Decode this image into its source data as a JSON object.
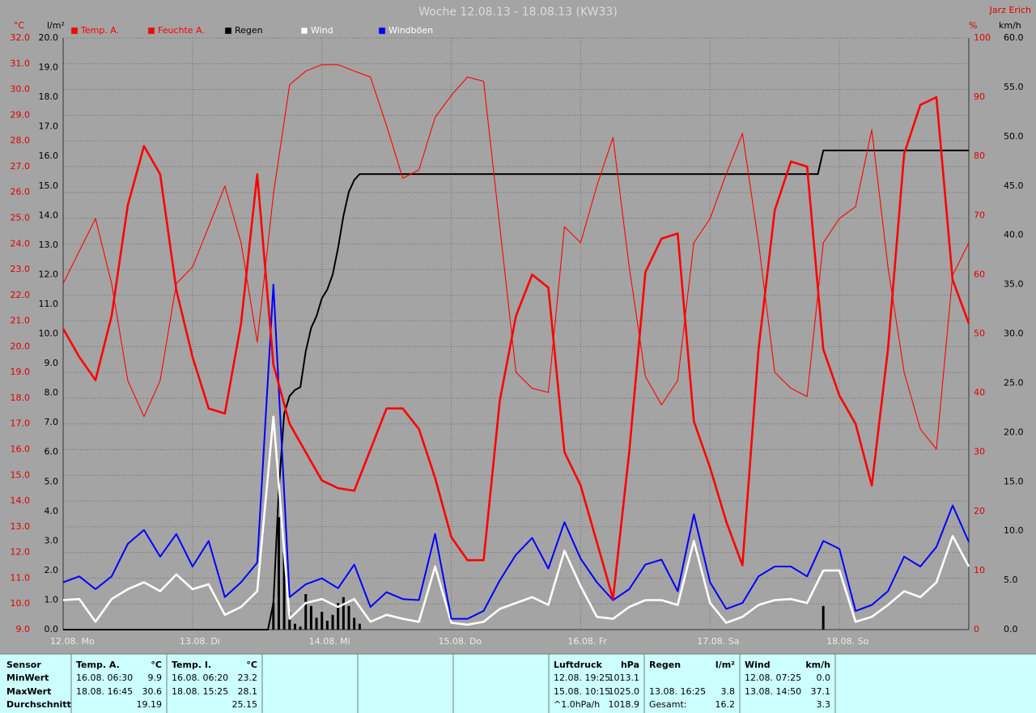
{
  "chart_data": {
    "type": "line",
    "title": "Woche 12.08.13 - 18.08.13 (KW33)",
    "author": "Jarz Erich",
    "y_label": "°C",
    "y3_label": "l/m²",
    "y2_label": "%",
    "y4_label": "km/h",
    "grid": true,
    "xlim": [
      0,
      168
    ],
    "xticks": [
      {
        "value": 0,
        "label": "12.08. Mo"
      },
      {
        "value": 24,
        "label": "13.08. Di"
      },
      {
        "value": 48,
        "label": "14.08. Mi"
      },
      {
        "value": 72,
        "label": "15.08. Do"
      },
      {
        "value": 96,
        "label": "16.08. Fr"
      },
      {
        "value": 120,
        "label": "17.08. Sa"
      },
      {
        "value": 144,
        "label": "18.08. So"
      }
    ],
    "ylim": [
      9,
      32
    ],
    "yticks": [
      {
        "value": 9,
        "label": "9.0"
      },
      {
        "value": 10,
        "label": "10.0"
      },
      {
        "value": 11,
        "label": "11.0"
      },
      {
        "value": 12,
        "label": "12.0"
      },
      {
        "value": 13,
        "label": "13.0"
      },
      {
        "value": 14,
        "label": "14.0"
      },
      {
        "value": 15,
        "label": "15.0"
      },
      {
        "value": 16,
        "label": "16.0"
      },
      {
        "value": 17,
        "label": "17.0"
      },
      {
        "value": 18,
        "label": "18.0"
      },
      {
        "value": 19,
        "label": "19.0"
      },
      {
        "value": 20,
        "label": "20.0"
      },
      {
        "value": 21,
        "label": "21.0"
      },
      {
        "value": 22,
        "label": "22.0"
      },
      {
        "value": 23,
        "label": "23.0"
      },
      {
        "value": 24,
        "label": "24.0"
      },
      {
        "value": 25,
        "label": "25.0"
      },
      {
        "value": 26,
        "label": "26.0"
      },
      {
        "value": 27,
        "label": "27.0"
      },
      {
        "value": 28,
        "label": "28.0"
      },
      {
        "value": 29,
        "label": "29.0"
      },
      {
        "value": 30,
        "label": "30.0"
      },
      {
        "value": 31,
        "label": "31.0"
      },
      {
        "value": 32,
        "label": "32.0"
      }
    ],
    "y2lim": [
      0,
      100
    ],
    "y2ticks": [
      0,
      10,
      20,
      30,
      40,
      50,
      60,
      70,
      80,
      90,
      100
    ],
    "y3lim": [
      0,
      20
    ],
    "y3ticks": [
      {
        "value": 0,
        "label": "0.0"
      },
      {
        "value": 1,
        "label": "1.0"
      },
      {
        "value": 2,
        "label": "2.0"
      },
      {
        "value": 3,
        "label": "3.0"
      },
      {
        "value": 4,
        "label": "4.0"
      },
      {
        "value": 5,
        "label": "5.0"
      },
      {
        "value": 6,
        "label": "6.0"
      },
      {
        "value": 7,
        "label": "7.0"
      },
      {
        "value": 8,
        "label": "8.0"
      },
      {
        "value": 9,
        "label": "9.0"
      },
      {
        "value": 10,
        "label": "10.0"
      },
      {
        "value": 11,
        "label": "11.0"
      },
      {
        "value": 12,
        "label": "12.0"
      },
      {
        "value": 13,
        "label": "13.0"
      },
      {
        "value": 14,
        "label": "14.0"
      },
      {
        "value": 15,
        "label": "15.0"
      },
      {
        "value": 16,
        "label": "16.0"
      },
      {
        "value": 17,
        "label": "17.0"
      },
      {
        "value": 18,
        "label": "18.0"
      },
      {
        "value": 19,
        "label": "19.0"
      },
      {
        "value": 20,
        "label": "20.0"
      }
    ],
    "y4lim": [
      0,
      60
    ],
    "y4ticks": [
      {
        "value": 0,
        "label": "0.0"
      },
      {
        "value": 5,
        "label": "5.0"
      },
      {
        "value": 10,
        "label": "10.0"
      },
      {
        "value": 15,
        "label": "15.0"
      },
      {
        "value": 20,
        "label": "20.0"
      },
      {
        "value": 25,
        "label": "25.0"
      },
      {
        "value": 30,
        "label": "30.0"
      },
      {
        "value": 35,
        "label": "35.0"
      },
      {
        "value": 40,
        "label": "40.0"
      },
      {
        "value": 45,
        "label": "45.0"
      },
      {
        "value": 50,
        "label": "50.0"
      },
      {
        "value": 55,
        "label": "55.0"
      },
      {
        "value": 60,
        "label": "60.0"
      }
    ],
    "x": [
      0,
      3,
      6,
      9,
      12,
      15,
      18,
      21,
      24,
      27,
      30,
      33,
      36,
      39,
      42,
      45,
      48,
      51,
      54,
      57,
      60,
      63,
      66,
      69,
      72,
      75,
      78,
      81,
      84,
      87,
      90,
      93,
      96,
      99,
      102,
      105,
      108,
      111,
      114,
      117,
      120,
      123,
      126,
      129,
      132,
      135,
      138,
      141,
      144,
      147,
      150,
      153,
      156,
      159,
      162,
      165,
      168
    ],
    "series": [
      {
        "name": "Temp. A.",
        "color": "#ff0000",
        "axis": "y",
        "type": "line",
        "values": [
          20.7,
          19.6,
          18.7,
          21.2,
          25.5,
          27.8,
          26.7,
          22.2,
          19.6,
          17.6,
          17.4,
          20.9,
          26.7,
          19.3,
          17.0,
          15.9,
          14.8,
          14.5,
          14.4,
          16.0,
          17.6,
          17.6,
          16.8,
          14.9,
          12.6,
          11.7,
          11.7,
          17.9,
          21.2,
          22.8,
          22.3,
          15.9,
          14.6,
          12.4,
          10.2,
          15.9,
          22.9,
          24.2,
          24.4,
          17.1,
          15.3,
          13.2,
          11.5,
          19.9,
          25.3,
          27.2,
          27.0,
          19.9,
          18.1,
          17.0,
          14.6,
          19.9,
          27.5,
          29.4,
          29.7,
          22.6,
          20.9
        ]
      },
      {
        "name": "Feuchte A.",
        "color": "#ff0000",
        "axis": "y2",
        "type": "line",
        "values": [
          58.5,
          64.0,
          69.5,
          58.5,
          42.1,
          36.0,
          42.1,
          58.5,
          61.3,
          68.1,
          75.0,
          65.4,
          48.6,
          73.6,
          92.1,
          94.4,
          95.5,
          95.5,
          94.4,
          93.4,
          85.2,
          76.3,
          77.7,
          86.6,
          90.3,
          93.4,
          92.7,
          68.1,
          43.5,
          40.8,
          40.1,
          68.1,
          65.4,
          75.0,
          83.2,
          61.3,
          42.8,
          38.0,
          42.1,
          65.4,
          69.5,
          77.0,
          83.9,
          65.4,
          43.5,
          40.8,
          39.4,
          65.4,
          69.5,
          71.5,
          84.5,
          61.3,
          43.5,
          33.9,
          30.5,
          59.9,
          65.4
        ]
      },
      {
        "name": "Regen",
        "color": "#000000",
        "axis": "y3",
        "type": "rain",
        "x": [
          39,
          40,
          41,
          42,
          43,
          44,
          45,
          46,
          47,
          48,
          49,
          50,
          51,
          52,
          53,
          54,
          55,
          141
        ],
        "values": [
          0.9,
          3.8,
          2.6,
          0.6,
          0.2,
          0.1,
          1.2,
          0.8,
          0.4,
          0.6,
          0.3,
          0.5,
          0.9,
          1.1,
          0.8,
          0.4,
          0.2,
          0.8
        ]
      },
      {
        "name": "Wind",
        "color": "#ffffff",
        "axis": "y4",
        "type": "line",
        "values": [
          3.0,
          3.1,
          0.8,
          3.1,
          4.1,
          4.8,
          3.9,
          5.6,
          4.1,
          4.6,
          1.5,
          2.3,
          3.9,
          21.6,
          1.1,
          2.7,
          3.1,
          2.3,
          3.1,
          0.8,
          1.5,
          1.1,
          0.8,
          6.4,
          0.7,
          0.5,
          0.8,
          2.1,
          2.7,
          3.3,
          2.5,
          8.0,
          4.4,
          1.3,
          1.1,
          2.3,
          3.0,
          3.0,
          2.5,
          9.0,
          2.7,
          0.7,
          1.3,
          2.5,
          3.0,
          3.1,
          2.7,
          6.0,
          6.0,
          0.8,
          1.3,
          2.5,
          3.9,
          3.3,
          4.8,
          9.5,
          6.4
        ]
      },
      {
        "name": "Windböen",
        "color": "#0000ff",
        "axis": "y4",
        "type": "line",
        "values": [
          4.8,
          5.4,
          4.1,
          5.4,
          8.7,
          10.1,
          7.4,
          9.7,
          6.4,
          9.0,
          3.3,
          4.8,
          6.8,
          35.0,
          3.3,
          4.6,
          5.2,
          4.2,
          6.6,
          2.3,
          3.8,
          3.1,
          3.0,
          9.7,
          1.1,
          1.1,
          1.9,
          5.0,
          7.6,
          9.3,
          6.2,
          10.9,
          7.2,
          4.8,
          3.0,
          4.1,
          6.6,
          7.1,
          3.9,
          11.7,
          4.8,
          2.1,
          2.7,
          5.4,
          6.4,
          6.4,
          5.4,
          9.0,
          8.2,
          1.9,
          2.5,
          3.9,
          7.4,
          6.4,
          8.4,
          12.6,
          8.9
        ]
      }
    ]
  },
  "table": {
    "labels": [
      "Sensor",
      "MinWert",
      "MaxWert",
      "Durchschnitt"
    ],
    "columns": [
      {
        "name": "Temp. A.",
        "unit": "°C",
        "rows": [
          [
            "16.08.  06:30",
            "9.9"
          ],
          [
            "18.08.  16:45",
            "30.6"
          ],
          [
            null,
            "19.19"
          ]
        ]
      },
      {
        "name": "Temp. I.",
        "unit": "°C",
        "rows": [
          [
            "16.08.  06:20",
            "23.2"
          ],
          [
            "18.08.  15:25",
            "28.1"
          ],
          [
            null,
            "25.15"
          ]
        ]
      },
      {
        "name": "Luftdruck",
        "unit": "hPa",
        "rows": [
          [
            "12.08.  19:25",
            "1013.1"
          ],
          [
            "15.08.  10:15",
            "1025.0"
          ],
          [
            "^1.0hPa/h",
            "1018.9"
          ]
        ]
      },
      {
        "name": "Regen",
        "unit": "l/m²",
        "rows": [
          [
            null,
            null
          ],
          [
            "13.08.  16:25",
            "3.8"
          ],
          [
            "Gesamt:",
            "16.2"
          ]
        ]
      },
      {
        "name": "Wind",
        "unit": "km/h",
        "rows": [
          [
            "12.08.  07:25",
            "0.0"
          ],
          [
            "13.08.  14:50",
            "37.1"
          ],
          [
            null,
            "3.3"
          ]
        ]
      }
    ]
  }
}
